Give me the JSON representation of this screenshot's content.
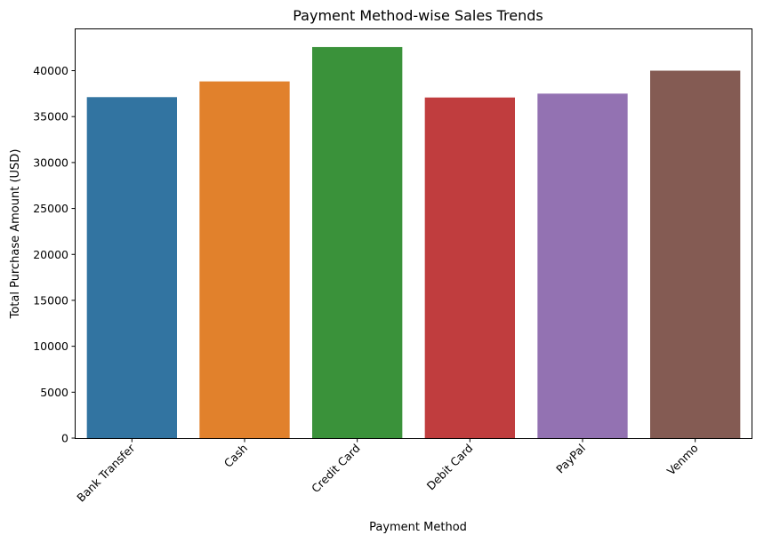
{
  "chart_data": {
    "type": "bar",
    "title": "Payment Method-wise Sales Trends",
    "xlabel": "Payment Method",
    "ylabel": "Total Purchase Amount (USD)",
    "categories": [
      "Bank Transfer",
      "Cash",
      "Credit Card",
      "Debit Card",
      "PayPal",
      "Venmo"
    ],
    "values": [
      37120,
      38830,
      42570,
      37080,
      37500,
      40000
    ],
    "colors": [
      "#3274a1",
      "#e1812c",
      "#3a923a",
      "#c03d3e",
      "#9372b2",
      "#845b53"
    ],
    "ylim": [
      0,
      44500
    ],
    "yticks": [
      0,
      5000,
      10000,
      15000,
      20000,
      25000,
      30000,
      35000,
      40000
    ],
    "xtick_rotation": "45 degrees",
    "grid": false,
    "legend": "none"
  }
}
